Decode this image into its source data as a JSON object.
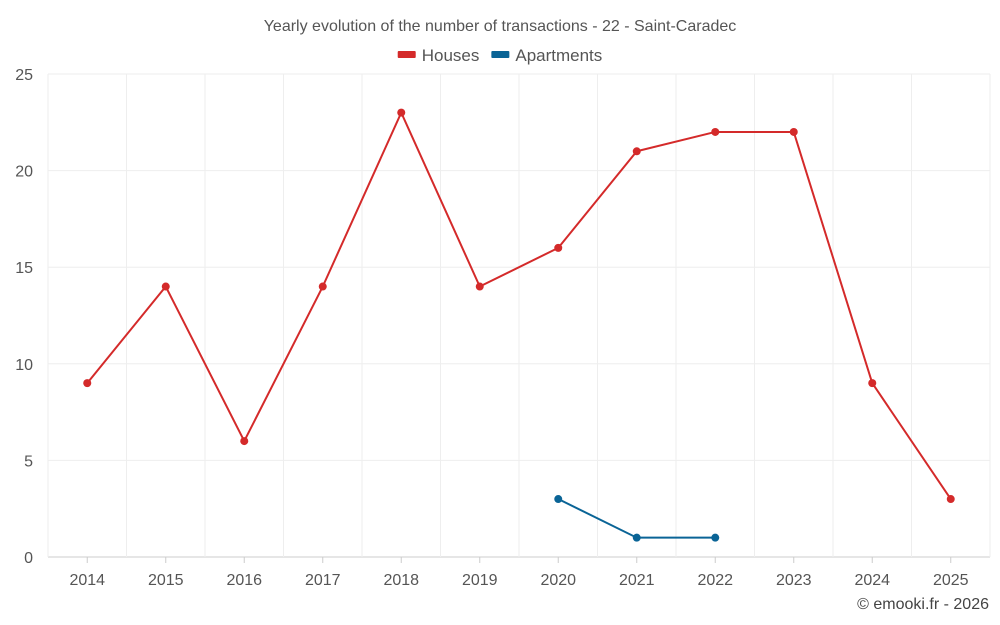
{
  "chart_data": {
    "type": "line",
    "title": "Yearly evolution of the number of transactions - 22 - Saint-Caradec",
    "xlabel": "",
    "ylabel": "",
    "categories": [
      "2014",
      "2015",
      "2016",
      "2017",
      "2018",
      "2019",
      "2020",
      "2021",
      "2022",
      "2023",
      "2024",
      "2025"
    ],
    "ylim": [
      0,
      25
    ],
    "yticks": [
      0,
      5,
      10,
      15,
      20,
      25
    ],
    "grid": true,
    "legend_position": "top-center",
    "series": [
      {
        "name": "Houses",
        "color": "#d42a2a",
        "values": [
          9,
          14,
          6,
          14,
          23,
          14,
          16,
          21,
          22,
          22,
          9,
          3
        ]
      },
      {
        "name": "Apartments",
        "color": "#0a6496",
        "values": [
          null,
          null,
          null,
          null,
          null,
          null,
          3,
          1,
          1,
          null,
          null,
          null
        ]
      }
    ]
  },
  "credit": "© emooki.fr - 2026"
}
